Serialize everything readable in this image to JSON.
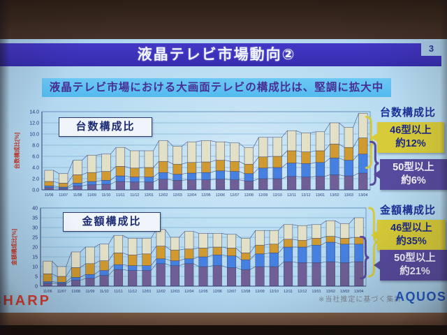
{
  "slide": {
    "title": "液晶テレビ市場動向②",
    "page_number": "3",
    "subtitle": "液晶テレビ市場における大画面テレビの構成比は、堅調に拡大中",
    "footnote": "※当社推定に基づく集計",
    "logo_left": "SHARP",
    "logo_right": "AQUOS"
  },
  "colors": {
    "title_bar": "#3a30bc",
    "subtitle_band": "#58bdf0",
    "subtitle_text": "#482d92",
    "slide_background": "#b4d9f0",
    "callout_yellow": "#d7cb39",
    "callout_purple": "#564a9e",
    "axis_label_red": "#c2392c",
    "sharp_red": "#d63a2e",
    "aquos_blue": "#2156c4",
    "bar_purple": "#6f5f96",
    "bar_blue": "#4680e0",
    "bar_orange": "#d09a30",
    "bar_cream": "#e3e0c8"
  },
  "chart_data": [
    {
      "type": "bar",
      "stacked": true,
      "title": "台数構成比",
      "side_heading": "台数構成比",
      "ylabel": "台数構成比[%]",
      "xlabel": "",
      "ylim": [
        0,
        14
      ],
      "ytick_step": 2,
      "decimals": 1,
      "grid": true,
      "legend": "none",
      "categories": [
        "11/06",
        "11/07",
        "11/08",
        "11/09",
        "11/10",
        "11/11",
        "11/12",
        "12/01",
        "12/02",
        "12/03",
        "12/04",
        "12/05",
        "12/06",
        "12/07",
        "12/08",
        "12/09",
        "12/10",
        "12/11",
        "12/12",
        "13/01",
        "13/02",
        "13/03",
        "13/04"
      ],
      "series": [
        {
          "name": "bottom-purple",
          "color": "#6f5f96",
          "values": [
            0.4,
            0.3,
            0.7,
            0.9,
            1.0,
            1.5,
            1.4,
            1.4,
            1.9,
            1.7,
            1.8,
            1.8,
            1.9,
            1.8,
            1.6,
            2.0,
            2.0,
            2.4,
            2.3,
            2.4,
            2.7,
            2.5,
            3.0
          ]
        },
        {
          "name": "blue",
          "color": "#4680e0",
          "values": [
            0.3,
            0.2,
            0.5,
            0.6,
            0.7,
            1.0,
            0.9,
            0.9,
            1.2,
            1.1,
            1.2,
            1.3,
            1.5,
            1.5,
            1.3,
            1.9,
            2.0,
            2.4,
            2.4,
            2.5,
            3.0,
            2.8,
            3.4
          ]
        },
        {
          "name": "orange",
          "color": "#d09a30",
          "values": [
            0.8,
            0.7,
            1.5,
            1.6,
            1.6,
            1.7,
            1.6,
            1.7,
            2.0,
            1.8,
            1.9,
            1.9,
            1.9,
            1.8,
            1.7,
            2.0,
            2.0,
            2.2,
            2.1,
            2.1,
            2.5,
            2.3,
            2.9
          ]
        },
        {
          "name": "top-cream",
          "color": "#e3e0c8",
          "values": [
            2.0,
            1.7,
            2.6,
            3.1,
            3.1,
            3.4,
            3.1,
            3.0,
            3.7,
            3.2,
            3.7,
            3.8,
            3.3,
            3.3,
            3.0,
            3.5,
            3.4,
            3.6,
            3.4,
            3.4,
            3.8,
            3.6,
            4.4
          ]
        }
      ],
      "callouts": [
        {
          "line1": "46型以上",
          "line2": "約12%",
          "style": "yellow",
          "covers": "total bar"
        },
        {
          "line1": "50型以上",
          "line2": "約6%",
          "style": "purple",
          "covers": "purple+blue segments"
        }
      ]
    },
    {
      "type": "bar",
      "stacked": true,
      "title": "金額構成比",
      "side_heading": "金額構成比",
      "ylabel": "金額構成比[%]",
      "xlabel": "",
      "ylim": [
        0,
        40
      ],
      "ytick_step": 5,
      "decimals": 0,
      "grid": true,
      "legend": "none",
      "categories": [
        "11/06",
        "11/07",
        "11/08",
        "11/09",
        "11/10",
        "11/11",
        "11/12",
        "12/01",
        "12/02",
        "12/03",
        "12/04",
        "12/05",
        "12/06",
        "12/07",
        "12/08",
        "12/09",
        "12/10",
        "12/11",
        "12/12",
        "13/01",
        "13/02",
        "13/03",
        "13/04"
      ],
      "series": [
        {
          "name": "bottom-purple",
          "color": "#6f5f96",
          "values": [
            1.5,
            1.3,
            3.0,
            4.0,
            5.5,
            8.5,
            8.0,
            8.0,
            11.5,
            10.5,
            11.5,
            10.0,
            10.5,
            9.5,
            8.5,
            10.0,
            10.0,
            12.5,
            12.0,
            12.0,
            12.5,
            12.0,
            12.5
          ]
        },
        {
          "name": "blue",
          "color": "#4680e0",
          "values": [
            0.8,
            0.7,
            1.5,
            2.0,
            2.5,
            2.5,
            2.5,
            2.5,
            2.5,
            2.5,
            2.5,
            5.0,
            5.5,
            6.0,
            5.0,
            6.5,
            7.0,
            7.5,
            8.0,
            9.0,
            10.0,
            9.5,
            9.0
          ]
        },
        {
          "name": "orange",
          "color": "#d09a30",
          "values": [
            4.0,
            3.0,
            5.0,
            5.5,
            5.0,
            6.0,
            5.5,
            6.0,
            6.5,
            5.5,
            5.0,
            4.5,
            4.0,
            4.0,
            3.5,
            4.5,
            4.5,
            4.0,
            3.5,
            3.5,
            3.0,
            3.0,
            3.5
          ]
        },
        {
          "name": "top-cream",
          "color": "#e3e0c8",
          "values": [
            6.5,
            5.0,
            8.0,
            8.5,
            8.5,
            9.0,
            8.5,
            8.0,
            8.5,
            6.5,
            9.0,
            7.5,
            7.0,
            7.0,
            7.5,
            7.5,
            7.0,
            7.5,
            7.5,
            7.0,
            8.0,
            7.5,
            10.0
          ]
        }
      ],
      "callouts": [
        {
          "line1": "46型以上",
          "line2": "約35%",
          "style": "yellow",
          "covers": "total bar"
        },
        {
          "line1": "50型以上",
          "line2": "約21%",
          "style": "purple",
          "covers": "purple+blue segments"
        }
      ]
    }
  ]
}
